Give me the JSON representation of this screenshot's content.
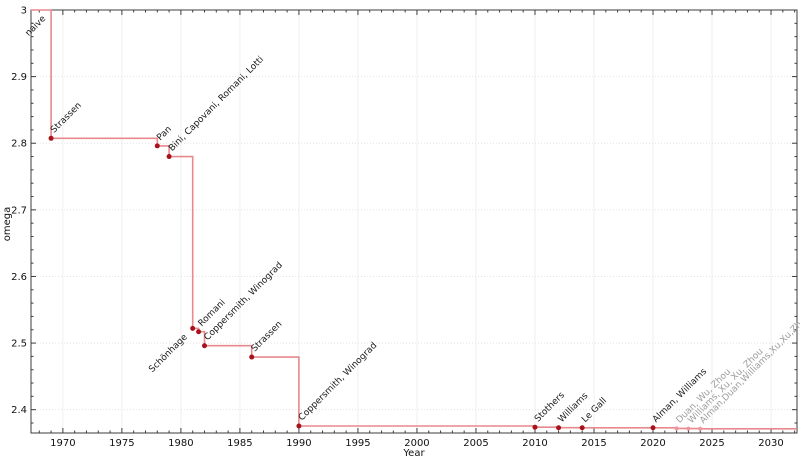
{
  "chart_data": {
    "type": "line",
    "subtype": "step-post",
    "title": "",
    "xlabel": "Year",
    "ylabel": "omega",
    "xlim": [
      1967.3,
      2032.2
    ],
    "ylim": [
      2.365,
      3.0
    ],
    "x_ticks": [
      1970,
      1975,
      1980,
      1985,
      1990,
      1995,
      2000,
      2005,
      2010,
      2015,
      2020,
      2025,
      2030
    ],
    "y_ticks": [
      "2.4",
      "2.5",
      "2.6",
      "2.7",
      "2.8",
      "2.9",
      "3"
    ],
    "x_minor_step": 1,
    "y_minor_step": 0.02,
    "grid": true,
    "legend": "none",
    "points": [
      {
        "label": "naive",
        "year": 1969,
        "omega": 3,
        "marker": false,
        "label_side": "below",
        "recent": false
      },
      {
        "label": "Strassen",
        "year": 1969,
        "omega": 2.8074,
        "marker": true,
        "label_side": "above",
        "recent": false
      },
      {
        "label": "Pan",
        "year": 1978,
        "omega": 2.796,
        "marker": true,
        "label_side": "above",
        "recent": false
      },
      {
        "label": "Bini, Capovani, Romani, Lotti",
        "year": 1979,
        "omega": 2.78,
        "marker": true,
        "label_side": "above",
        "recent": false
      },
      {
        "label": "Schönhage",
        "year": 1981,
        "omega": 2.522,
        "marker": true,
        "label_side": "below",
        "recent": false
      },
      {
        "label": "Romani",
        "year": 1981.5,
        "omega": 2.517,
        "marker": true,
        "label_side": "above",
        "recent": false
      },
      {
        "label": "Coppersmith, Winograd",
        "year": 1982,
        "omega": 2.496,
        "marker": true,
        "label_side": "above",
        "recent": false
      },
      {
        "label": "Strassen",
        "year": 1986,
        "omega": 2.479,
        "marker": true,
        "label_side": "above",
        "recent": false
      },
      {
        "label": "Coppersmith, Winograd",
        "year": 1990,
        "omega": 2.3755,
        "marker": true,
        "label_side": "above",
        "recent": false
      },
      {
        "label": "Stothers",
        "year": 2010,
        "omega": 2.3737,
        "marker": true,
        "label_side": "above",
        "recent": false
      },
      {
        "label": "Williams",
        "year": 2012,
        "omega": 2.3729,
        "marker": true,
        "label_side": "above",
        "recent": false
      },
      {
        "label": "Le Gall",
        "year": 2014,
        "omega": 2.3728639,
        "marker": true,
        "label_side": "above",
        "recent": false
      },
      {
        "label": "Alman, Williams",
        "year": 2020,
        "omega": 2.3728596,
        "marker": true,
        "label_side": "above",
        "recent": false
      },
      {
        "label": "Duan, Wu, Zhou",
        "year": 2022,
        "omega": 2.371866,
        "marker": true,
        "label_side": "above",
        "recent": true
      },
      {
        "label": "Williams, Xu, Xu, Zhou",
        "year": 2023,
        "omega": 2.371552,
        "marker": true,
        "label_side": "above",
        "recent": true
      },
      {
        "label": "Alman,Duan,Williams,Xu,Xu,Zhou",
        "year": 2024,
        "omega": 2.371339,
        "marker": true,
        "label_side": "above",
        "recent": true
      }
    ]
  },
  "colors": {
    "line": "#e8898d",
    "dot": "#a8131b",
    "dot_recent": "#f0969a",
    "label": "#1a1a1a",
    "label_recent": "#9c9c9c",
    "axis": "#3c3c3c",
    "tick_label": "#111111",
    "grid_x": "#efefef",
    "grid_y": "#e3e3e3",
    "background": "#ffffff"
  }
}
